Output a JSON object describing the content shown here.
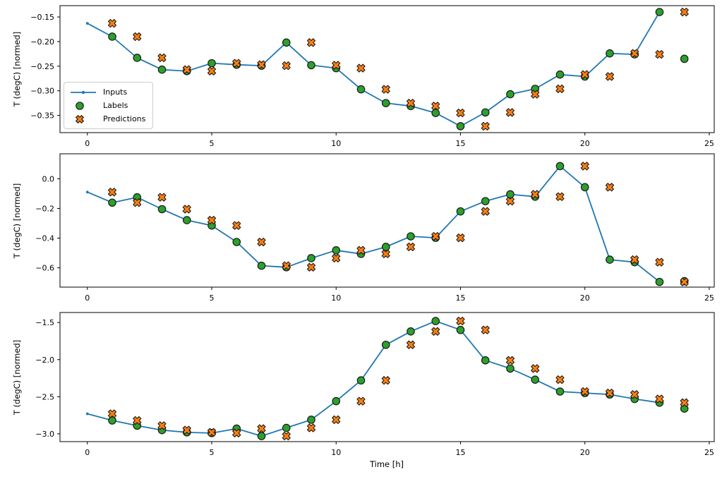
{
  "figure": {
    "xlabel": "Time [h]",
    "ylabel": "T (degC) [normed]",
    "legend": {
      "position": "upper-left-of-first-panel",
      "items": [
        {
          "label": "Inputs",
          "marker": "line-with-dot"
        },
        {
          "label": "Labels",
          "marker": "filled-circle"
        },
        {
          "label": "Predictions",
          "marker": "filled-x"
        }
      ]
    },
    "colors": {
      "inputs": "#1f77b4",
      "labels": "#2ca02c",
      "predictions": "#ff7f0e",
      "marker_edge": "#1a1a1a",
      "axis": "#000000"
    }
  },
  "chart_data": [
    {
      "type": "line",
      "panel": "top",
      "ylabel": "T (degC) [normed]",
      "xlim": [
        -1.1,
        25.2
      ],
      "ylim": [
        -0.385,
        -0.127
      ],
      "grid": false,
      "xticks": [
        0,
        5,
        10,
        15,
        20,
        25
      ],
      "xtick_labels": [
        "0",
        "5",
        "10",
        "15",
        "20",
        "25"
      ],
      "ytick_values": [
        -0.15,
        -0.2,
        -0.25,
        -0.3,
        -0.35
      ],
      "ytick_labels": [
        "−0.15",
        "−0.20",
        "−0.25",
        "−0.30",
        "−0.35"
      ],
      "series": [
        {
          "name": "Inputs",
          "type": "line+dots",
          "color": "#1f77b4",
          "x": [
            0,
            1,
            2,
            3,
            4,
            5,
            6,
            7,
            8,
            9,
            10,
            11,
            12,
            13,
            14,
            15,
            16,
            17,
            18,
            19,
            20,
            21,
            22,
            23
          ],
          "y": [
            -0.163,
            -0.19,
            -0.233,
            -0.257,
            -0.26,
            -0.244,
            -0.247,
            -0.249,
            -0.202,
            -0.248,
            -0.254,
            -0.297,
            -0.325,
            -0.331,
            -0.345,
            -0.372,
            -0.344,
            -0.307,
            -0.296,
            -0.267,
            -0.271,
            -0.224,
            -0.226,
            -0.14
          ]
        },
        {
          "name": "Labels",
          "type": "scatter-circle",
          "color": "#2ca02c",
          "x": [
            1,
            2,
            3,
            4,
            5,
            6,
            7,
            8,
            9,
            10,
            11,
            12,
            13,
            14,
            15,
            16,
            17,
            18,
            19,
            20,
            21,
            22,
            23,
            24
          ],
          "y": [
            -0.19,
            -0.233,
            -0.257,
            -0.26,
            -0.244,
            -0.247,
            -0.249,
            -0.202,
            -0.248,
            -0.254,
            -0.297,
            -0.325,
            -0.331,
            -0.345,
            -0.372,
            -0.344,
            -0.307,
            -0.296,
            -0.267,
            -0.271,
            -0.224,
            -0.226,
            -0.14,
            -0.235
          ]
        },
        {
          "name": "Predictions",
          "type": "scatter-x",
          "color": "#ff7f0e",
          "x": [
            1,
            2,
            3,
            4,
            5,
            6,
            7,
            8,
            9,
            10,
            11,
            12,
            13,
            14,
            15,
            16,
            17,
            18,
            19,
            20,
            21,
            22,
            23,
            24
          ],
          "y": [
            -0.163,
            -0.19,
            -0.233,
            -0.257,
            -0.26,
            -0.244,
            -0.247,
            -0.249,
            -0.202,
            -0.248,
            -0.254,
            -0.297,
            -0.325,
            -0.331,
            -0.345,
            -0.372,
            -0.344,
            -0.307,
            -0.296,
            -0.267,
            -0.271,
            -0.224,
            -0.226,
            -0.14
          ]
        }
      ]
    },
    {
      "type": "line",
      "panel": "middle",
      "ylabel": "T (degC) [normed]",
      "xlim": [
        -1.1,
        25.2
      ],
      "ylim": [
        -0.73,
        0.168
      ],
      "grid": false,
      "xticks": [
        0,
        5,
        10,
        15,
        20,
        25
      ],
      "xtick_labels": [
        "0",
        "5",
        "10",
        "15",
        "20",
        "25"
      ],
      "ytick_values": [
        0.0,
        -0.2,
        -0.4,
        -0.6
      ],
      "ytick_labels": [
        "0.0",
        "−0.2",
        "−0.4",
        "−0.6"
      ],
      "series": [
        {
          "name": "Inputs",
          "type": "line+dots",
          "color": "#1f77b4",
          "x": [
            0,
            1,
            2,
            3,
            4,
            5,
            6,
            7,
            8,
            9,
            10,
            11,
            12,
            13,
            14,
            15,
            16,
            17,
            18,
            19,
            20,
            21,
            22,
            23
          ],
          "y": [
            -0.09,
            -0.161,
            -0.125,
            -0.205,
            -0.279,
            -0.315,
            -0.426,
            -0.586,
            -0.596,
            -0.535,
            -0.482,
            -0.506,
            -0.459,
            -0.388,
            -0.398,
            -0.22,
            -0.151,
            -0.105,
            -0.121,
            0.085,
            -0.057,
            -0.545,
            -0.562,
            -0.695
          ]
        },
        {
          "name": "Labels",
          "type": "scatter-circle",
          "color": "#2ca02c",
          "x": [
            1,
            2,
            3,
            4,
            5,
            6,
            7,
            8,
            9,
            10,
            11,
            12,
            13,
            14,
            15,
            16,
            17,
            18,
            19,
            20,
            21,
            22,
            23,
            24
          ],
          "y": [
            -0.161,
            -0.125,
            -0.205,
            -0.279,
            -0.315,
            -0.426,
            -0.586,
            -0.596,
            -0.535,
            -0.482,
            -0.506,
            -0.459,
            -0.388,
            -0.398,
            -0.22,
            -0.151,
            -0.105,
            -0.121,
            0.085,
            -0.057,
            -0.545,
            -0.562,
            -0.695,
            -0.69
          ]
        },
        {
          "name": "Predictions",
          "type": "scatter-x",
          "color": "#ff7f0e",
          "x": [
            1,
            2,
            3,
            4,
            5,
            6,
            7,
            8,
            9,
            10,
            11,
            12,
            13,
            14,
            15,
            16,
            17,
            18,
            19,
            20,
            21,
            22,
            23,
            24
          ],
          "y": [
            -0.09,
            -0.161,
            -0.125,
            -0.205,
            -0.279,
            -0.315,
            -0.426,
            -0.586,
            -0.596,
            -0.535,
            -0.482,
            -0.506,
            -0.459,
            -0.388,
            -0.398,
            -0.22,
            -0.151,
            -0.105,
            -0.121,
            0.085,
            -0.057,
            -0.545,
            -0.562,
            -0.695
          ]
        }
      ]
    },
    {
      "type": "line",
      "panel": "bottom",
      "ylabel": "T (degC) [normed]",
      "xlabel": "Time [h]",
      "xlim": [
        -1.1,
        25.2
      ],
      "ylim": [
        -3.105,
        -1.365
      ],
      "grid": false,
      "xticks": [
        0,
        5,
        10,
        15,
        20,
        25
      ],
      "xtick_labels": [
        "0",
        "5",
        "10",
        "15",
        "20",
        "25"
      ],
      "ytick_values": [
        -1.5,
        -2.0,
        -2.5,
        -3.0
      ],
      "ytick_labels": [
        "−1.5",
        "−2.0",
        "−2.5",
        "−3.0"
      ],
      "series": [
        {
          "name": "Inputs",
          "type": "line+dots",
          "color": "#1f77b4",
          "x": [
            0,
            1,
            2,
            3,
            4,
            5,
            6,
            7,
            8,
            9,
            10,
            11,
            12,
            13,
            14,
            15,
            16,
            17,
            18,
            19,
            20,
            21,
            22,
            23
          ],
          "y": [
            -2.73,
            -2.82,
            -2.89,
            -2.95,
            -2.98,
            -2.99,
            -2.93,
            -3.03,
            -2.92,
            -2.81,
            -2.56,
            -2.28,
            -1.8,
            -1.62,
            -1.48,
            -1.6,
            -2.01,
            -2.12,
            -2.27,
            -2.43,
            -2.45,
            -2.47,
            -2.53,
            -2.58
          ]
        },
        {
          "name": "Labels",
          "type": "scatter-circle",
          "color": "#2ca02c",
          "x": [
            1,
            2,
            3,
            4,
            5,
            6,
            7,
            8,
            9,
            10,
            11,
            12,
            13,
            14,
            15,
            16,
            17,
            18,
            19,
            20,
            21,
            22,
            23,
            24
          ],
          "y": [
            -2.82,
            -2.89,
            -2.95,
            -2.98,
            -2.99,
            -2.93,
            -3.03,
            -2.92,
            -2.81,
            -2.56,
            -2.28,
            -1.8,
            -1.62,
            -1.48,
            -1.6,
            -2.01,
            -2.12,
            -2.27,
            -2.43,
            -2.45,
            -2.47,
            -2.53,
            -2.58,
            -2.66
          ]
        },
        {
          "name": "Predictions",
          "type": "scatter-x",
          "color": "#ff7f0e",
          "x": [
            1,
            2,
            3,
            4,
            5,
            6,
            7,
            8,
            9,
            10,
            11,
            12,
            13,
            14,
            15,
            16,
            17,
            18,
            19,
            20,
            21,
            22,
            23,
            24
          ],
          "y": [
            -2.73,
            -2.82,
            -2.89,
            -2.95,
            -2.98,
            -2.99,
            -2.93,
            -3.03,
            -2.92,
            -2.81,
            -2.56,
            -2.28,
            -1.8,
            -1.62,
            -1.48,
            -1.6,
            -2.01,
            -2.12,
            -2.27,
            -2.43,
            -2.45,
            -2.47,
            -2.53,
            -2.58
          ]
        }
      ]
    }
  ]
}
